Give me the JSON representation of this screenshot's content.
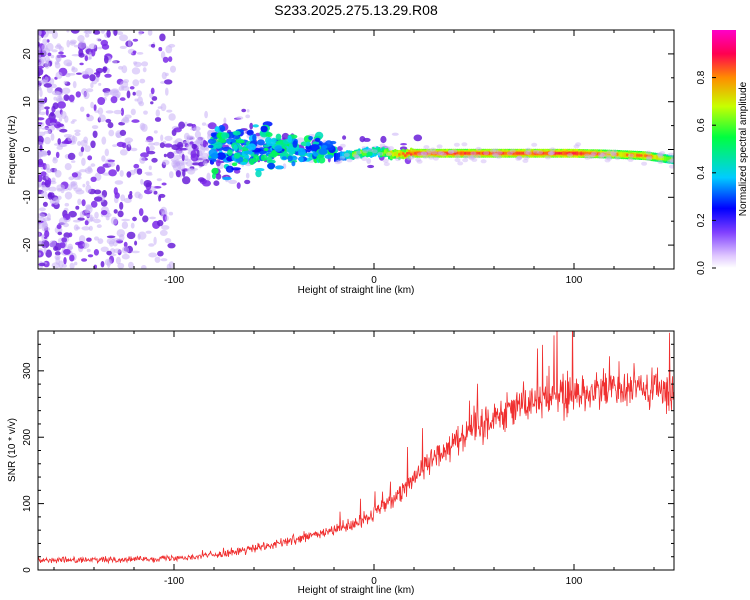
{
  "title": "S233.2025.275.13.29.R08",
  "chart_data": [
    {
      "type": "heatmap",
      "xlabel": "Height of straight line (km)",
      "ylabel": "Frequency (Hz)",
      "xlim": [
        -168,
        150
      ],
      "ylim": [
        -25,
        25
      ],
      "xticks": [
        -100,
        0,
        100
      ],
      "yticks": [
        -20,
        -10,
        0,
        10,
        20
      ],
      "colorbar": {
        "label": "Normalized spectral amplitude",
        "range": [
          0,
          1
        ],
        "ticks": [
          "0.0",
          "0.2",
          "0.4",
          "0.6",
          "0.8"
        ],
        "colors": [
          "#ffffff",
          "#a070ff",
          "#0000ff",
          "#00ccff",
          "#00ff40",
          "#c8ff00",
          "#ff8c00",
          "#ff0050",
          "#ff00c8"
        ]
      },
      "ridge": {
        "x": [
          -20,
          -10,
          0,
          10,
          20,
          40,
          60,
          80,
          100,
          120,
          135,
          150
        ],
        "freq": [
          -1.5,
          -1.0,
          -0.5,
          -1.0,
          -0.8,
          -0.8,
          -0.8,
          -0.8,
          -0.8,
          -1.0,
          -1.3,
          -2.2
        ],
        "amplitude": [
          0.3,
          0.6,
          0.5,
          0.75,
          0.85,
          0.85,
          0.85,
          0.85,
          0.9,
          0.75,
          0.8,
          0.55
        ]
      }
    },
    {
      "type": "line",
      "xlabel": "Height of straight line (km)",
      "ylabel": "SNR (10 * v/v)",
      "xlim": [
        -168,
        150
      ],
      "ylim": [
        0,
        360
      ],
      "xticks": [
        -100,
        0,
        100
      ],
      "yticks": [
        0,
        100,
        200,
        300
      ],
      "color": "#f03030",
      "series": [
        {
          "name": "SNR",
          "x": [
            -168,
            -140,
            -120,
            -100,
            -90,
            -80,
            -70,
            -60,
            -50,
            -40,
            -30,
            -20,
            -10,
            0,
            10,
            20,
            30,
            40,
            50,
            60,
            70,
            80,
            90,
            100,
            110,
            120,
            130,
            140,
            150
          ],
          "values": [
            15,
            15,
            16,
            18,
            20,
            23,
            27,
            32,
            38,
            45,
            52,
            60,
            68,
            85,
            110,
            140,
            170,
            195,
            215,
            232,
            245,
            255,
            262,
            268,
            270,
            272,
            272,
            270,
            268
          ]
        }
      ]
    }
  ]
}
